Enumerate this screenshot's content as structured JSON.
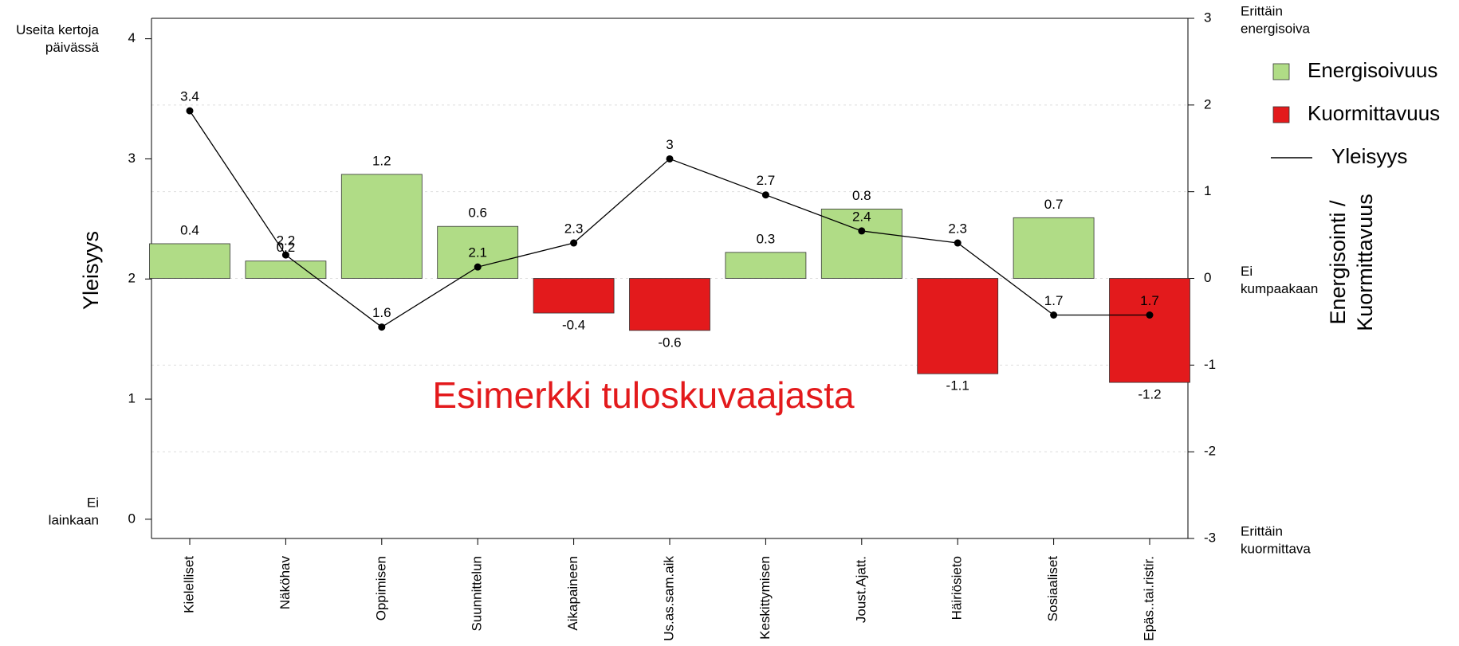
{
  "chart_data": {
    "type": "bar_line",
    "categories": [
      "Kielelliset",
      "Näköhav",
      "Oppimisen",
      "Suunnittelun",
      "Aikapaineen",
      "Us.as.sam.aik",
      "Keskittymisen",
      "Joust.Ajatt.",
      "Häiriösieto",
      "Sosiaaliset",
      "Epäs..tai.ristir."
    ],
    "series": [
      {
        "name": "Energisoivuus",
        "color": "#b0dc86",
        "axis": "y2",
        "kind": "bar",
        "values": [
          0.4,
          0.2,
          1.2,
          0.6,
          null,
          null,
          0.3,
          0.8,
          null,
          0.7,
          null
        ]
      },
      {
        "name": "Kuormittavuus",
        "color": "#e31a1c",
        "axis": "y2",
        "kind": "bar",
        "values": [
          null,
          null,
          null,
          null,
          -0.4,
          -0.6,
          null,
          null,
          -1.1,
          null,
          -1.2
        ]
      },
      {
        "name": "Yleisyys",
        "color": "#000000",
        "axis": "y",
        "kind": "line",
        "values": [
          3.4,
          2.2,
          1.6,
          2.1,
          2.3,
          3,
          2.7,
          2.4,
          2.3,
          1.7,
          1.7
        ]
      }
    ],
    "ylabel": "Yleisyys",
    "y2label": [
      "Energisointi /",
      "Kuormittavuus"
    ],
    "ylim": [
      -0.16,
      4.17
    ],
    "yticks": [
      0,
      1,
      2,
      3,
      4
    ],
    "y2lim": [
      -3,
      3
    ],
    "y2ticks": [
      -3,
      -2,
      -1,
      0,
      1,
      2,
      3
    ],
    "y_annotations": [
      {
        "value": 4,
        "lines": [
          "Useita kertoja",
          "päivässä"
        ]
      },
      {
        "value": 0,
        "lines": [
          "Ei",
          "lainkaan"
        ]
      }
    ],
    "y2_annotations": [
      {
        "value": 3,
        "lines": [
          "Erittäin",
          "energisoiva"
        ]
      },
      {
        "value": 0,
        "lines": [
          "Ei",
          "kumpaakaan"
        ]
      },
      {
        "value": -3,
        "lines": [
          "Erittäin",
          "kuormittava"
        ]
      }
    ],
    "watermark": "Esimerkki tuloskuvaajasta",
    "grid": true,
    "legend": "right"
  }
}
